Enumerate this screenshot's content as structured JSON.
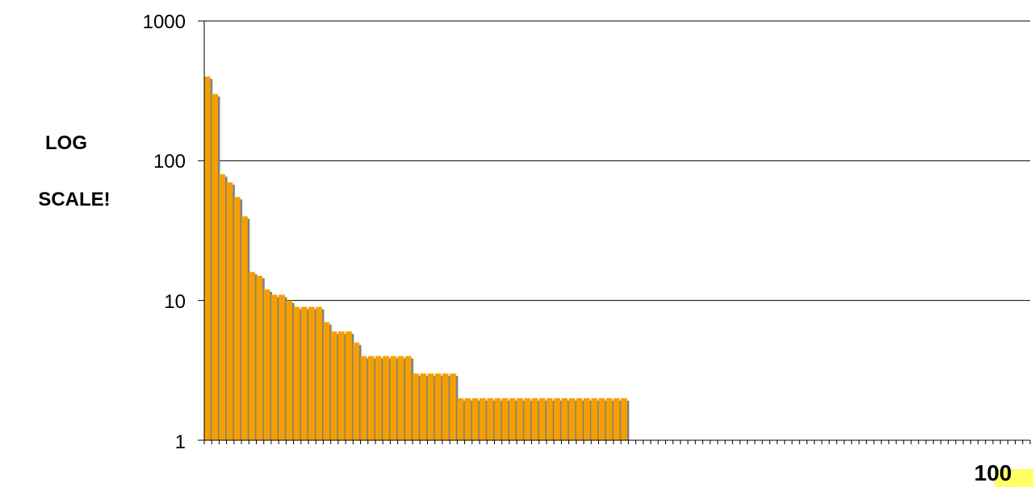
{
  "chart_data": {
    "type": "bar",
    "scale": "log",
    "ylim": [
      1,
      1000
    ],
    "yticks": [
      "1",
      "10",
      "100",
      "1000"
    ],
    "ylabel_lines": [
      "LOG",
      "SCALE!"
    ],
    "x_corner_label": "100",
    "grid": true,
    "legend": "none",
    "values": [
      400,
      300,
      80,
      70,
      55,
      40,
      16,
      15,
      12,
      11,
      11,
      10,
      9,
      9,
      9,
      9,
      7,
      6,
      6,
      6,
      5,
      4,
      4,
      4,
      4,
      4,
      4,
      4,
      3,
      3,
      3,
      3,
      3,
      3,
      2,
      2,
      2,
      2,
      2,
      2,
      2,
      2,
      2,
      2,
      2,
      2,
      2,
      2,
      2,
      2,
      2,
      2,
      2,
      2,
      2,
      2,
      2,
      1,
      1,
      1,
      1,
      1,
      1,
      1,
      1,
      1,
      1,
      1,
      1,
      1,
      1,
      1,
      1,
      1,
      1,
      1,
      1,
      1,
      1,
      1,
      1,
      1,
      1,
      1,
      1,
      1,
      1,
      1,
      1,
      1,
      1,
      1,
      1,
      1,
      1,
      1,
      1,
      1,
      1,
      1,
      1,
      1,
      1,
      1,
      1,
      1,
      1,
      1,
      1,
      1,
      1
    ]
  },
  "colors": {
    "bar": "#f5a000",
    "bar_shadow": "#808080",
    "highlight": "#ffff66"
  }
}
